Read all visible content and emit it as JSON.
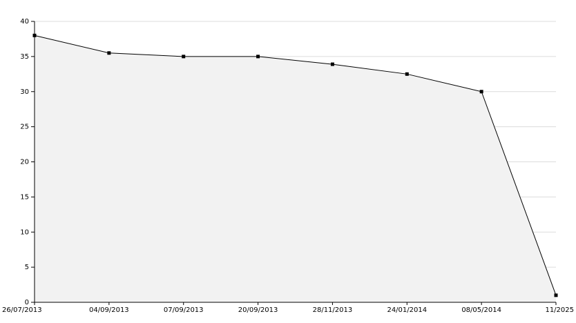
{
  "chart_data": {
    "type": "area",
    "categories": [
      "26/07/2013",
      "04/09/2013",
      "07/09/2013",
      "20/09/2013",
      "28/11/2013",
      "24/01/2014",
      "08/05/2014",
      "11/2025"
    ],
    "values": [
      38,
      35.5,
      35,
      35,
      33.9,
      32.5,
      30,
      1
    ],
    "color": "#000000",
    "fill": "#f2f2f2",
    "ylim": [
      0,
      40
    ],
    "yticks": [
      0,
      5,
      10,
      15,
      20,
      25,
      30,
      35,
      40
    ],
    "grid": true
  }
}
